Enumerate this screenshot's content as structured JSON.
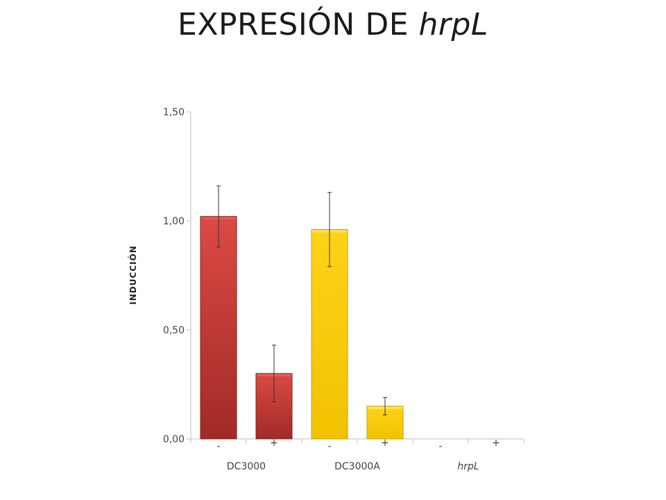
{
  "title": {
    "main": "EXPRESIÓN DE ",
    "italic": "hrpL"
  },
  "chart_data": {
    "type": "bar",
    "title": "EXPRESIÓN DE hrpL",
    "ylabel": "INDUCCIÓN",
    "xlabel": "",
    "ylim": [
      0,
      1.5
    ],
    "yticks": [
      "0,00",
      "0,50",
      "1,00",
      "1,50"
    ],
    "ytick_values": [
      0,
      0.5,
      1.0,
      1.5
    ],
    "categories": [
      "-",
      "+",
      "-",
      "+",
      "-",
      "+"
    ],
    "groups": [
      {
        "label": "DC3000",
        "italic": false
      },
      {
        "label": "DC3000A",
        "italic": false
      },
      {
        "label": "hrpL",
        "italic": true
      }
    ],
    "values": [
      1.02,
      0.3,
      0.96,
      0.15,
      0.0,
      0.0
    ],
    "error": [
      0.14,
      0.13,
      0.17,
      0.04,
      0.0,
      0.0
    ],
    "colors": [
      "#c9302c",
      "#c9302c",
      "#f5c400",
      "#f5c400",
      "#c9302c",
      "#c9302c"
    ],
    "grid": false
  }
}
